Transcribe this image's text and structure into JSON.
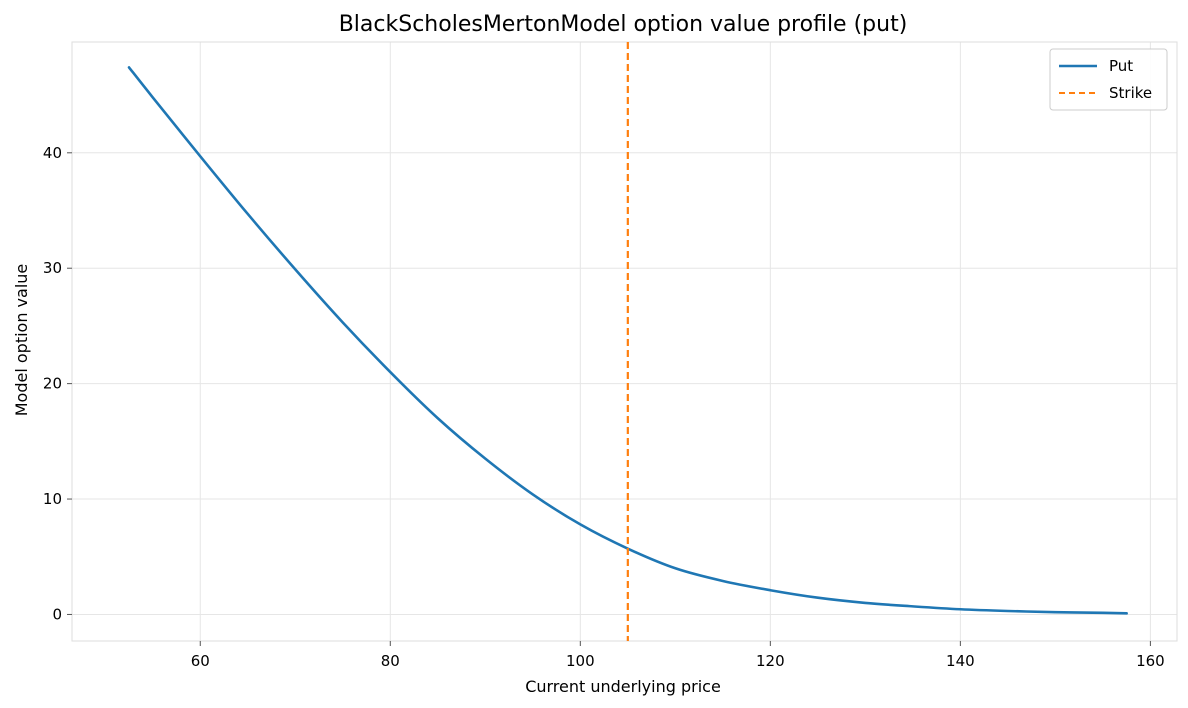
{
  "chart_data": {
    "type": "line",
    "title": "BlackScholesMertonModel option value profile (put)",
    "xlabel": "Current underlying price",
    "ylabel": "Model option value",
    "xlim": [
      46.5,
      162.8
    ],
    "ylim": [
      -2.3,
      49.6
    ],
    "xticks": [
      60,
      80,
      100,
      120,
      140,
      160
    ],
    "yticks": [
      0,
      10,
      20,
      30,
      40
    ],
    "grid": true,
    "legend_position": "top-right",
    "series": [
      {
        "name": "Put",
        "color": "#1f77b4",
        "style": "solid",
        "x": [
          52.5,
          55,
          60,
          65,
          70,
          75,
          80,
          85,
          90,
          95,
          100,
          105,
          110,
          115,
          120,
          125,
          130,
          135,
          140,
          145,
          150,
          155,
          157.5
        ],
        "y": [
          47.4,
          44.8,
          39.7,
          34.7,
          29.9,
          25.3,
          21.0,
          17.0,
          13.5,
          10.4,
          7.8,
          5.7,
          4.0,
          2.9,
          2.1,
          1.45,
          1.0,
          0.7,
          0.45,
          0.3,
          0.2,
          0.14,
          0.1
        ]
      },
      {
        "name": "Strike",
        "color": "#ff7f0e",
        "style": "dashed",
        "x_value": 105
      }
    ]
  }
}
